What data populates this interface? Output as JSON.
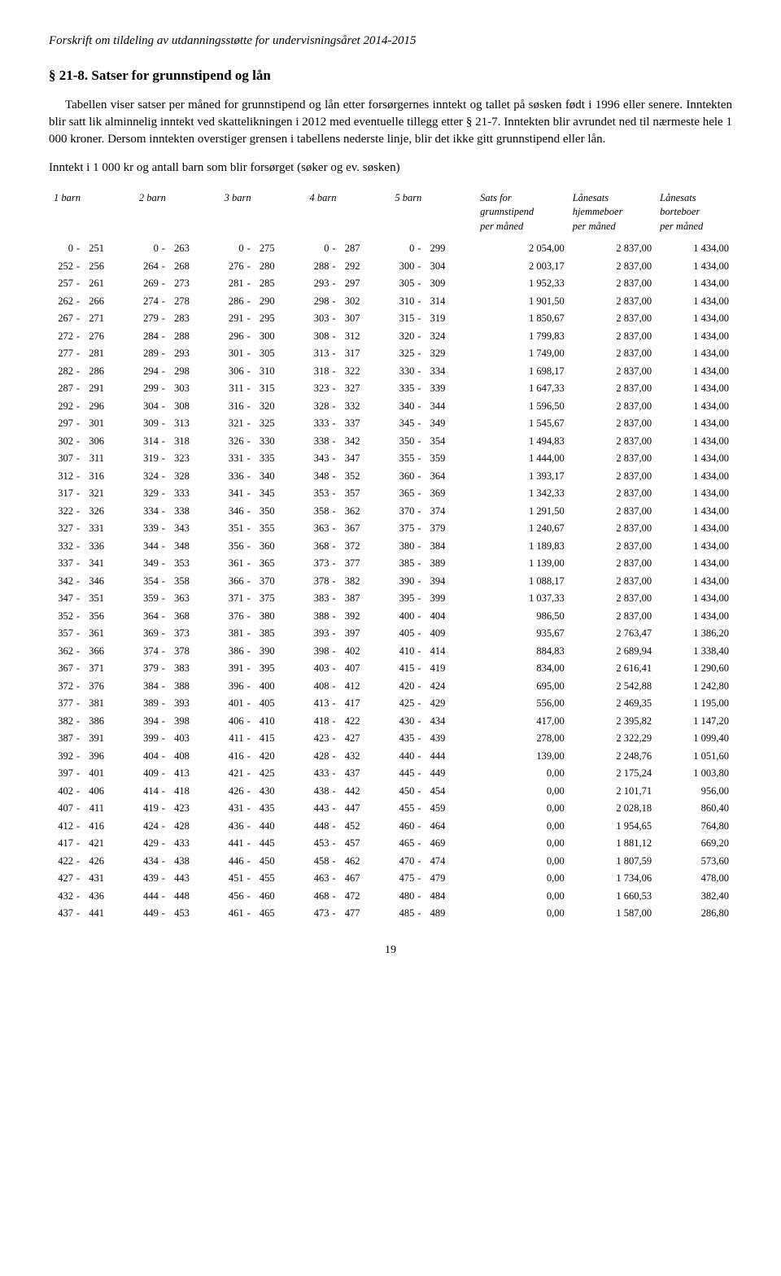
{
  "header": "Forskrift om tildeling av utdanningsstøtte for undervisningsåret 2014-2015",
  "section_number": "§ 21-8.",
  "section_title": "Satser for grunnstipend og lån",
  "para1": "Tabellen viser satser per måned for grunnstipend og lån etter forsørgernes inntekt og tallet på søsken født i 1996 eller senere. Inntekten blir satt lik alminnelig inntekt ved skattelikningen i 2012 med eventuelle tillegg etter § 21-7. Inntekten blir avrundet ned til nærmeste hele 1 000 kroner. Dersom inntekten overstiger grensen i tabellens nederste linje, blir det ikke gitt grunnstipend eller lån.",
  "para2": "Inntekt i 1 000 kr og antall barn som blir forsørget (søker og ev. søsken)",
  "columns": {
    "c1": "1 barn",
    "c2": "2 barn",
    "c3": "3 barn",
    "c4": "4 barn",
    "c5": "5 barn",
    "c6_l1": "Sats for",
    "c6_l2": "grunnstipend",
    "c6_l3": "per måned",
    "c7_l1": "Lånesats",
    "c7_l2": "hjemmeboer",
    "c7_l3": "per måned",
    "c8_l1": "Lånesats",
    "c8_l2": "borteboer",
    "c8_l3": "per måned"
  },
  "rows": [
    {
      "b1": [
        0,
        251
      ],
      "b2": [
        0,
        263
      ],
      "b3": [
        0,
        275
      ],
      "b4": [
        0,
        287
      ],
      "b5": [
        0,
        299
      ],
      "g": "2 054,00",
      "h": "2 837,00",
      "bo": "1 434,00"
    },
    {
      "b1": [
        252,
        256
      ],
      "b2": [
        264,
        268
      ],
      "b3": [
        276,
        280
      ],
      "b4": [
        288,
        292
      ],
      "b5": [
        300,
        304
      ],
      "g": "2 003,17",
      "h": "2 837,00",
      "bo": "1 434,00"
    },
    {
      "b1": [
        257,
        261
      ],
      "b2": [
        269,
        273
      ],
      "b3": [
        281,
        285
      ],
      "b4": [
        293,
        297
      ],
      "b5": [
        305,
        309
      ],
      "g": "1 952,33",
      "h": "2 837,00",
      "bo": "1 434,00"
    },
    {
      "b1": [
        262,
        266
      ],
      "b2": [
        274,
        278
      ],
      "b3": [
        286,
        290
      ],
      "b4": [
        298,
        302
      ],
      "b5": [
        310,
        314
      ],
      "g": "1 901,50",
      "h": "2 837,00",
      "bo": "1 434,00"
    },
    {
      "b1": [
        267,
        271
      ],
      "b2": [
        279,
        283
      ],
      "b3": [
        291,
        295
      ],
      "b4": [
        303,
        307
      ],
      "b5": [
        315,
        319
      ],
      "g": "1 850,67",
      "h": "2 837,00",
      "bo": "1 434,00"
    },
    {
      "b1": [
        272,
        276
      ],
      "b2": [
        284,
        288
      ],
      "b3": [
        296,
        300
      ],
      "b4": [
        308,
        312
      ],
      "b5": [
        320,
        324
      ],
      "g": "1 799,83",
      "h": "2 837,00",
      "bo": "1 434,00"
    },
    {
      "b1": [
        277,
        281
      ],
      "b2": [
        289,
        293
      ],
      "b3": [
        301,
        305
      ],
      "b4": [
        313,
        317
      ],
      "b5": [
        325,
        329
      ],
      "g": "1 749,00",
      "h": "2 837,00",
      "bo": "1 434,00"
    },
    {
      "b1": [
        282,
        286
      ],
      "b2": [
        294,
        298
      ],
      "b3": [
        306,
        310
      ],
      "b4": [
        318,
        322
      ],
      "b5": [
        330,
        334
      ],
      "g": "1 698,17",
      "h": "2 837,00",
      "bo": "1 434,00"
    },
    {
      "b1": [
        287,
        291
      ],
      "b2": [
        299,
        303
      ],
      "b3": [
        311,
        315
      ],
      "b4": [
        323,
        327
      ],
      "b5": [
        335,
        339
      ],
      "g": "1 647,33",
      "h": "2 837,00",
      "bo": "1 434,00"
    },
    {
      "b1": [
        292,
        296
      ],
      "b2": [
        304,
        308
      ],
      "b3": [
        316,
        320
      ],
      "b4": [
        328,
        332
      ],
      "b5": [
        340,
        344
      ],
      "g": "1 596,50",
      "h": "2 837,00",
      "bo": "1 434,00"
    },
    {
      "b1": [
        297,
        301
      ],
      "b2": [
        309,
        313
      ],
      "b3": [
        321,
        325
      ],
      "b4": [
        333,
        337
      ],
      "b5": [
        345,
        349
      ],
      "g": "1 545,67",
      "h": "2 837,00",
      "bo": "1 434,00"
    },
    {
      "b1": [
        302,
        306
      ],
      "b2": [
        314,
        318
      ],
      "b3": [
        326,
        330
      ],
      "b4": [
        338,
        342
      ],
      "b5": [
        350,
        354
      ],
      "g": "1 494,83",
      "h": "2 837,00",
      "bo": "1 434,00"
    },
    {
      "b1": [
        307,
        311
      ],
      "b2": [
        319,
        323
      ],
      "b3": [
        331,
        335
      ],
      "b4": [
        343,
        347
      ],
      "b5": [
        355,
        359
      ],
      "g": "1 444,00",
      "h": "2 837,00",
      "bo": "1 434,00"
    },
    {
      "b1": [
        312,
        316
      ],
      "b2": [
        324,
        328
      ],
      "b3": [
        336,
        340
      ],
      "b4": [
        348,
        352
      ],
      "b5": [
        360,
        364
      ],
      "g": "1 393,17",
      "h": "2 837,00",
      "bo": "1 434,00"
    },
    {
      "b1": [
        317,
        321
      ],
      "b2": [
        329,
        333
      ],
      "b3": [
        341,
        345
      ],
      "b4": [
        353,
        357
      ],
      "b5": [
        365,
        369
      ],
      "g": "1 342,33",
      "h": "2 837,00",
      "bo": "1 434,00"
    },
    {
      "b1": [
        322,
        326
      ],
      "b2": [
        334,
        338
      ],
      "b3": [
        346,
        350
      ],
      "b4": [
        358,
        362
      ],
      "b5": [
        370,
        374
      ],
      "g": "1 291,50",
      "h": "2 837,00",
      "bo": "1 434,00"
    },
    {
      "b1": [
        327,
        331
      ],
      "b2": [
        339,
        343
      ],
      "b3": [
        351,
        355
      ],
      "b4": [
        363,
        367
      ],
      "b5": [
        375,
        379
      ],
      "g": "1 240,67",
      "h": "2 837,00",
      "bo": "1 434,00"
    },
    {
      "b1": [
        332,
        336
      ],
      "b2": [
        344,
        348
      ],
      "b3": [
        356,
        360
      ],
      "b4": [
        368,
        372
      ],
      "b5": [
        380,
        384
      ],
      "g": "1 189,83",
      "h": "2 837,00",
      "bo": "1 434,00"
    },
    {
      "b1": [
        337,
        341
      ],
      "b2": [
        349,
        353
      ],
      "b3": [
        361,
        365
      ],
      "b4": [
        373,
        377
      ],
      "b5": [
        385,
        389
      ],
      "g": "1 139,00",
      "h": "2 837,00",
      "bo": "1 434,00"
    },
    {
      "b1": [
        342,
        346
      ],
      "b2": [
        354,
        358
      ],
      "b3": [
        366,
        370
      ],
      "b4": [
        378,
        382
      ],
      "b5": [
        390,
        394
      ],
      "g": "1 088,17",
      "h": "2 837,00",
      "bo": "1 434,00"
    },
    {
      "b1": [
        347,
        351
      ],
      "b2": [
        359,
        363
      ],
      "b3": [
        371,
        375
      ],
      "b4": [
        383,
        387
      ],
      "b5": [
        395,
        399
      ],
      "g": "1 037,33",
      "h": "2 837,00",
      "bo": "1 434,00"
    },
    {
      "b1": [
        352,
        356
      ],
      "b2": [
        364,
        368
      ],
      "b3": [
        376,
        380
      ],
      "b4": [
        388,
        392
      ],
      "b5": [
        400,
        404
      ],
      "g": "986,50",
      "h": "2 837,00",
      "bo": "1 434,00"
    },
    {
      "b1": [
        357,
        361
      ],
      "b2": [
        369,
        373
      ],
      "b3": [
        381,
        385
      ],
      "b4": [
        393,
        397
      ],
      "b5": [
        405,
        409
      ],
      "g": "935,67",
      "h": "2 763,47",
      "bo": "1 386,20"
    },
    {
      "b1": [
        362,
        366
      ],
      "b2": [
        374,
        378
      ],
      "b3": [
        386,
        390
      ],
      "b4": [
        398,
        402
      ],
      "b5": [
        410,
        414
      ],
      "g": "884,83",
      "h": "2 689,94",
      "bo": "1 338,40"
    },
    {
      "b1": [
        367,
        371
      ],
      "b2": [
        379,
        383
      ],
      "b3": [
        391,
        395
      ],
      "b4": [
        403,
        407
      ],
      "b5": [
        415,
        419
      ],
      "g": "834,00",
      "h": "2 616,41",
      "bo": "1 290,60"
    },
    {
      "b1": [
        372,
        376
      ],
      "b2": [
        384,
        388
      ],
      "b3": [
        396,
        400
      ],
      "b4": [
        408,
        412
      ],
      "b5": [
        420,
        424
      ],
      "g": "695,00",
      "h": "2 542,88",
      "bo": "1 242,80"
    },
    {
      "b1": [
        377,
        381
      ],
      "b2": [
        389,
        393
      ],
      "b3": [
        401,
        405
      ],
      "b4": [
        413,
        417
      ],
      "b5": [
        425,
        429
      ],
      "g": "556,00",
      "h": "2 469,35",
      "bo": "1 195,00"
    },
    {
      "b1": [
        382,
        386
      ],
      "b2": [
        394,
        398
      ],
      "b3": [
        406,
        410
      ],
      "b4": [
        418,
        422
      ],
      "b5": [
        430,
        434
      ],
      "g": "417,00",
      "h": "2 395,82",
      "bo": "1 147,20"
    },
    {
      "b1": [
        387,
        391
      ],
      "b2": [
        399,
        403
      ],
      "b3": [
        411,
        415
      ],
      "b4": [
        423,
        427
      ],
      "b5": [
        435,
        439
      ],
      "g": "278,00",
      "h": "2 322,29",
      "bo": "1 099,40"
    },
    {
      "b1": [
        392,
        396
      ],
      "b2": [
        404,
        408
      ],
      "b3": [
        416,
        420
      ],
      "b4": [
        428,
        432
      ],
      "b5": [
        440,
        444
      ],
      "g": "139,00",
      "h": "2 248,76",
      "bo": "1 051,60"
    },
    {
      "b1": [
        397,
        401
      ],
      "b2": [
        409,
        413
      ],
      "b3": [
        421,
        425
      ],
      "b4": [
        433,
        437
      ],
      "b5": [
        445,
        449
      ],
      "g": "0,00",
      "h": "2 175,24",
      "bo": "1 003,80"
    },
    {
      "b1": [
        402,
        406
      ],
      "b2": [
        414,
        418
      ],
      "b3": [
        426,
        430
      ],
      "b4": [
        438,
        442
      ],
      "b5": [
        450,
        454
      ],
      "g": "0,00",
      "h": "2 101,71",
      "bo": "956,00"
    },
    {
      "b1": [
        407,
        411
      ],
      "b2": [
        419,
        423
      ],
      "b3": [
        431,
        435
      ],
      "b4": [
        443,
        447
      ],
      "b5": [
        455,
        459
      ],
      "g": "0,00",
      "h": "2 028,18",
      "bo": "860,40"
    },
    {
      "b1": [
        412,
        416
      ],
      "b2": [
        424,
        428
      ],
      "b3": [
        436,
        440
      ],
      "b4": [
        448,
        452
      ],
      "b5": [
        460,
        464
      ],
      "g": "0,00",
      "h": "1 954,65",
      "bo": "764,80"
    },
    {
      "b1": [
        417,
        421
      ],
      "b2": [
        429,
        433
      ],
      "b3": [
        441,
        445
      ],
      "b4": [
        453,
        457
      ],
      "b5": [
        465,
        469
      ],
      "g": "0,00",
      "h": "1 881,12",
      "bo": "669,20"
    },
    {
      "b1": [
        422,
        426
      ],
      "b2": [
        434,
        438
      ],
      "b3": [
        446,
        450
      ],
      "b4": [
        458,
        462
      ],
      "b5": [
        470,
        474
      ],
      "g": "0,00",
      "h": "1 807,59",
      "bo": "573,60"
    },
    {
      "b1": [
        427,
        431
      ],
      "b2": [
        439,
        443
      ],
      "b3": [
        451,
        455
      ],
      "b4": [
        463,
        467
      ],
      "b5": [
        475,
        479
      ],
      "g": "0,00",
      "h": "1 734,06",
      "bo": "478,00"
    },
    {
      "b1": [
        432,
        436
      ],
      "b2": [
        444,
        448
      ],
      "b3": [
        456,
        460
      ],
      "b4": [
        468,
        472
      ],
      "b5": [
        480,
        484
      ],
      "g": "0,00",
      "h": "1 660,53",
      "bo": "382,40"
    },
    {
      "b1": [
        437,
        441
      ],
      "b2": [
        449,
        453
      ],
      "b3": [
        461,
        465
      ],
      "b4": [
        473,
        477
      ],
      "b5": [
        485,
        489
      ],
      "g": "0,00",
      "h": "1 587,00",
      "bo": "286,80"
    }
  ],
  "page_number": "19"
}
